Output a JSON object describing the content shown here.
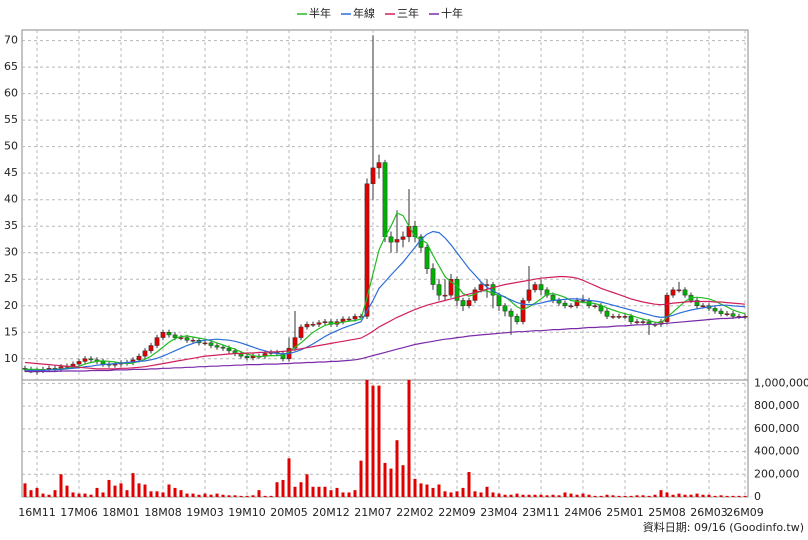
{
  "chart_data": [
    {
      "type": "candlestick",
      "legend": "top",
      "grid": true,
      "color_up": "#e00000",
      "color_down": "#00b000",
      "ylim": [
        6,
        72
      ],
      "yticks": [
        10,
        15,
        20,
        25,
        30,
        35,
        40,
        45,
        50,
        55,
        60,
        65,
        70
      ],
      "open": [
        8.2,
        8,
        7.5,
        7.8,
        8,
        8.2,
        8,
        8.5,
        8.6,
        9,
        9.5,
        10,
        9.8,
        9.5,
        9,
        8.8,
        9,
        9.2,
        9.3,
        9.8,
        10.5,
        11.5,
        12.5,
        14,
        15,
        14.5,
        14,
        14,
        13.5,
        13.5,
        13,
        13,
        12.5,
        12.2,
        12,
        11.5,
        11,
        10.5,
        10.2,
        10.5,
        10.5,
        11,
        11.2,
        11,
        10,
        12,
        14,
        16,
        16.5,
        16.5,
        16.8,
        17,
        16.5,
        17,
        17.5,
        17.5,
        18,
        18,
        43,
        46,
        47,
        33,
        32,
        32.5,
        33,
        35,
        33,
        31,
        27,
        24,
        22,
        22,
        25,
        21,
        20,
        21,
        23,
        24,
        24,
        22,
        20,
        19,
        18,
        17,
        21,
        23,
        24,
        23,
        22,
        21,
        20.5,
        20,
        20,
        21,
        21,
        20,
        20,
        19,
        18,
        18,
        18,
        18,
        17,
        17,
        17,
        16.5,
        16.5,
        17,
        22,
        23,
        23,
        22,
        21,
        20,
        20,
        19.5,
        19,
        18.5,
        18.5,
        18,
        18
      ],
      "high": [
        8.7,
        8.5,
        8.3,
        8.5,
        8.7,
        8.7,
        9,
        9.1,
        9.5,
        10,
        10.5,
        10.5,
        10.3,
        10,
        9.5,
        9.5,
        9.7,
        9.8,
        10.3,
        11,
        12,
        13,
        14.5,
        15.5,
        15.5,
        15,
        14.5,
        14.5,
        14,
        14,
        13.5,
        13.5,
        13,
        12.7,
        12.5,
        12,
        11.5,
        11,
        11,
        11,
        11.5,
        11.7,
        11.7,
        11.5,
        14,
        19,
        16.5,
        17,
        17,
        17.3,
        17.5,
        17.5,
        17.5,
        18,
        18,
        18.5,
        18.5,
        44,
        71,
        48.5,
        47.5,
        34,
        38,
        34,
        42,
        36,
        33.5,
        31.5,
        28,
        25,
        25,
        26,
        25.5,
        21.5,
        21.5,
        23.5,
        24.5,
        25,
        24.5,
        22.5,
        20.5,
        19.5,
        18.5,
        21.5,
        27.5,
        24.5,
        25,
        23.5,
        22.5,
        21.5,
        21,
        20.5,
        21.5,
        22,
        21.5,
        20.5,
        20.5,
        19.5,
        18.5,
        18.5,
        18.5,
        18.5,
        17.5,
        17.5,
        17.5,
        17,
        17.5,
        22.5,
        23.5,
        24.5,
        23.5,
        22.5,
        21.5,
        20.5,
        20.5,
        20,
        19.5,
        19,
        19,
        18.5,
        18.5
      ],
      "low": [
        7.5,
        7.3,
        7,
        7.3,
        7.5,
        7.5,
        7.5,
        8,
        8.1,
        8.5,
        9,
        9.3,
        9,
        8.5,
        8.3,
        8.3,
        8.5,
        8.7,
        8.8,
        9.3,
        10,
        11,
        12,
        13.5,
        14,
        13.5,
        13.5,
        13,
        13,
        12.5,
        12.5,
        12,
        11.7,
        11.5,
        11,
        10.5,
        10,
        9.7,
        9.7,
        10,
        10,
        10.5,
        10.5,
        9.5,
        9.5,
        11.5,
        13.5,
        15.5,
        16,
        16,
        16.3,
        16,
        16,
        16.5,
        17,
        17,
        17.5,
        17.5,
        40,
        44,
        32,
        30,
        30,
        31,
        32,
        32,
        30,
        26,
        23,
        21,
        21,
        21.5,
        20,
        19,
        19.5,
        20.5,
        22.5,
        21.5,
        19.5,
        19,
        18,
        14.5,
        16.5,
        16.5,
        20.5,
        22.5,
        22,
        21.5,
        20.5,
        20,
        19.5,
        19.5,
        19.5,
        20.5,
        19.5,
        19.5,
        18.5,
        17.5,
        17.5,
        17.5,
        17.5,
        16.5,
        16.5,
        16.5,
        14.5,
        16,
        16,
        16.5,
        21.5,
        22.5,
        21.5,
        20.5,
        19.5,
        19.5,
        19,
        18.5,
        18,
        18,
        17.5,
        17.5,
        17.5
      ],
      "close": [
        8,
        7.5,
        7.8,
        8,
        8.2,
        8,
        8.5,
        8.6,
        9,
        9.5,
        10,
        9.8,
        9.5,
        9,
        8.8,
        9,
        9.2,
        9.3,
        9.8,
        10.5,
        11.5,
        12.5,
        14,
        15,
        14.5,
        14,
        14,
        13.5,
        13.5,
        13,
        13,
        12.5,
        12.2,
        12,
        11.5,
        11,
        10.5,
        10.2,
        10.5,
        10.5,
        11,
        11.2,
        11,
        10,
        12,
        14,
        16,
        16.5,
        16.5,
        16.8,
        17,
        16.5,
        17,
        17.5,
        17.5,
        18,
        18,
        43,
        46,
        47,
        33,
        32,
        32.5,
        33,
        35,
        33,
        31,
        27,
        24,
        22,
        22,
        25,
        21,
        20,
        21,
        23,
        24,
        24,
        22,
        20,
        19,
        18,
        17,
        21,
        23,
        24,
        23,
        22,
        21,
        20.5,
        20,
        20,
        21,
        21,
        20,
        20,
        19,
        18,
        18,
        18,
        18,
        17,
        17,
        17,
        16.5,
        16.5,
        17,
        22,
        23,
        23,
        22,
        21,
        20,
        20,
        19.5,
        19,
        18.5,
        18.5,
        18,
        18,
        18
      ],
      "series": [
        {
          "name": "半年",
          "color": "#22bb22",
          "values": [
            8,
            8,
            8,
            7.9,
            7.9,
            7.9,
            8.1,
            8.2,
            8.4,
            8.6,
            9,
            9.3,
            9.5,
            9.6,
            9.5,
            9.4,
            9.2,
            9.1,
            9.2,
            9.5,
            9.9,
            10.5,
            11.3,
            12.2,
            13.1,
            13.8,
            14.2,
            14.3,
            14.1,
            13.9,
            13.7,
            13.4,
            13,
            12.6,
            12.2,
            11.8,
            11.3,
            10.9,
            10.6,
            10.4,
            10.5,
            10.6,
            10.6,
            10.7,
            11.3,
            12.2,
            13,
            14,
            15,
            15.7,
            16.3,
            16.6,
            16.7,
            16.9,
            17.1,
            17.2,
            17.5,
            21.5,
            26,
            30.5,
            33,
            35,
            37.5,
            37,
            35,
            33,
            32.5,
            31.8,
            29.5,
            27.5,
            25.5,
            24.5,
            23.8,
            22.3,
            21.8,
            22.2,
            22.8,
            22.8,
            22.3,
            22,
            21.7,
            20.8,
            19.8,
            19.3,
            19.8,
            20.5,
            21.3,
            22.2,
            22.3,
            22,
            21.6,
            21,
            20.8,
            20.6,
            20.6,
            20.4,
            20.1,
            19.6,
            19.2,
            18.8,
            18.5,
            18.2,
            17.8,
            17.5,
            17.2,
            16.9,
            16.8,
            17.8,
            18.8,
            19.8,
            20.8,
            21.5,
            21.6,
            21.5,
            21.3,
            20.9,
            20.3,
            19.8,
            19.2,
            18.8,
            18.5
          ]
        },
        {
          "name": "年線",
          "color": "#2b6cd8",
          "values": [
            7.8,
            7.8,
            7.8,
            7.8,
            7.9,
            7.9,
            8,
            8.1,
            8.2,
            8.3,
            8.5,
            8.6,
            8.8,
            8.9,
            9,
            9.1,
            9.2,
            9.3,
            9.4,
            9.5,
            9.6,
            9.8,
            10.1,
            10.5,
            11,
            11.5,
            12,
            12.5,
            12.9,
            13.3,
            13.5,
            13.6,
            13.7,
            13.6,
            13.5,
            13.3,
            13,
            12.6,
            12.2,
            11.8,
            11.5,
            11.2,
            11,
            10.9,
            11,
            11.3,
            11.7,
            12.2,
            12.8,
            13.5,
            14.2,
            14.8,
            15.3,
            15.8,
            16.2,
            16.6,
            17,
            19,
            21,
            23.3,
            24.5,
            25.8,
            27,
            28.2,
            29.6,
            31,
            32.5,
            33.5,
            34,
            33.8,
            32.8,
            31.5,
            30,
            28.5,
            27,
            25.8,
            24.5,
            23.5,
            22.8,
            22.2,
            21.6,
            21.1,
            20.6,
            20.3,
            20.2,
            20.3,
            20.5,
            20.8,
            21,
            21.1,
            21.2,
            21.3,
            21.3,
            21.2,
            21,
            20.9,
            20.7,
            20.4,
            20.1,
            19.8,
            19.5,
            19.2,
            18.9,
            18.6,
            18.3,
            18,
            17.8,
            17.9,
            18.2,
            18.6,
            18.9,
            19.2,
            19.4,
            19.6,
            19.8,
            20,
            20.1,
            20.1,
            20,
            19.9,
            19.8
          ]
        },
        {
          "name": "三年",
          "color": "#d0205a",
          "values": [
            9.3,
            9.2,
            9.1,
            9,
            8.9,
            8.8,
            8.7,
            8.6,
            8.5,
            8.4,
            8.3,
            8.2,
            8.1,
            8.1,
            8.1,
            8.1,
            8.2,
            8.2,
            8.3,
            8.4,
            8.5,
            8.7,
            8.9,
            9.1,
            9.3,
            9.5,
            9.7,
            9.9,
            10.1,
            10.3,
            10.5,
            10.6,
            10.7,
            10.8,
            10.9,
            11,
            11,
            11.1,
            11.1,
            11.2,
            11.2,
            11.3,
            11.3,
            11.4,
            11.5,
            11.7,
            11.9,
            12.1,
            12.3,
            12.5,
            12.7,
            12.9,
            13.1,
            13.3,
            13.5,
            13.7,
            13.9,
            14.5,
            15.2,
            16,
            16.6,
            17.2,
            17.8,
            18.3,
            18.8,
            19.3,
            19.7,
            20.1,
            20.4,
            20.7,
            21,
            21.3,
            21.6,
            21.9,
            22.2,
            22.5,
            22.8,
            23.1,
            23.4,
            23.7,
            24,
            24.2,
            24.4,
            24.6,
            24.8,
            25,
            25.2,
            25.3,
            25.4,
            25.5,
            25.5,
            25.4,
            25.2,
            24.8,
            24.3,
            23.8,
            23.3,
            22.9,
            22.5,
            22.1,
            21.7,
            21.3,
            21,
            20.7,
            20.5,
            20.3,
            20.2,
            20.3,
            20.5,
            20.6,
            20.7,
            20.8,
            20.8,
            20.8,
            20.8,
            20.7,
            20.7,
            20.6,
            20.5,
            20.4,
            20.3
          ]
        },
        {
          "name": "十年",
          "color": "#7a2aa8",
          "values": [
            7.6,
            7.6,
            7.6,
            7.6,
            7.6,
            7.6,
            7.7,
            7.7,
            7.7,
            7.7,
            7.7,
            7.8,
            7.8,
            7.8,
            7.8,
            7.9,
            7.9,
            7.9,
            8,
            8,
            8,
            8.1,
            8.1,
            8.2,
            8.2,
            8.3,
            8.3,
            8.4,
            8.4,
            8.5,
            8.5,
            8.6,
            8.6,
            8.7,
            8.7,
            8.8,
            8.8,
            8.9,
            8.9,
            8.9,
            9,
            9,
            9,
            9.1,
            9.1,
            9.2,
            9.2,
            9.3,
            9.3,
            9.4,
            9.4,
            9.5,
            9.5,
            9.6,
            9.7,
            9.8,
            10,
            10.3,
            10.6,
            10.9,
            11.2,
            11.5,
            11.8,
            12.1,
            12.4,
            12.7,
            12.9,
            13.1,
            13.3,
            13.5,
            13.7,
            13.8,
            14,
            14.1,
            14.3,
            14.4,
            14.5,
            14.6,
            14.7,
            14.8,
            14.9,
            15,
            15.1,
            15.1,
            15.2,
            15.3,
            15.3,
            15.4,
            15.5,
            15.5,
            15.6,
            15.7,
            15.7,
            15.8,
            15.9,
            15.9,
            16,
            16,
            16.1,
            16.2,
            16.2,
            16.3,
            16.4,
            16.4,
            16.5,
            16.5,
            16.6,
            16.7,
            16.8,
            16.9,
            17,
            17.1,
            17.2,
            17.3,
            17.4,
            17.5,
            17.6,
            17.6,
            17.7,
            17.8,
            17.8
          ]
        }
      ]
    },
    {
      "type": "bar",
      "grid": true,
      "color": "#e00000",
      "categories": [
        null,
        null,
        "16M11",
        null,
        null,
        null,
        null,
        null,
        null,
        "17M06",
        null,
        null,
        null,
        null,
        null,
        null,
        "18M01",
        null,
        null,
        null,
        null,
        null,
        null,
        "18M08",
        null,
        null,
        null,
        null,
        null,
        null,
        "19M03",
        null,
        null,
        null,
        null,
        null,
        null,
        "19M10",
        null,
        null,
        null,
        null,
        null,
        null,
        "20M05",
        null,
        null,
        null,
        null,
        null,
        null,
        "20M12",
        null,
        null,
        null,
        null,
        null,
        null,
        "21M07",
        null,
        null,
        null,
        null,
        null,
        null,
        "22M02",
        null,
        null,
        null,
        null,
        null,
        null,
        "22M09",
        null,
        null,
        null,
        null,
        null,
        null,
        "23M04",
        null,
        null,
        null,
        null,
        null,
        null,
        "23M11",
        null,
        null,
        null,
        null,
        null,
        null,
        "24M06",
        null,
        null,
        null,
        null,
        null,
        null,
        "25M01",
        null,
        null,
        null,
        null,
        null,
        null,
        "25M08",
        null,
        null,
        null,
        null,
        null,
        null,
        "26M03",
        null,
        null,
        null,
        null,
        null,
        "26M09"
      ],
      "values": [
        120000,
        60000,
        80000,
        30000,
        20000,
        60000,
        200000,
        100000,
        40000,
        30000,
        30000,
        20000,
        80000,
        40000,
        150000,
        100000,
        120000,
        60000,
        210000,
        120000,
        110000,
        50000,
        50000,
        40000,
        110000,
        80000,
        60000,
        30000,
        30000,
        20000,
        30000,
        20000,
        30000,
        20000,
        15000,
        15000,
        10000,
        10000,
        15000,
        60000,
        10000,
        10000,
        130000,
        150000,
        340000,
        90000,
        130000,
        200000,
        90000,
        90000,
        90000,
        60000,
        80000,
        40000,
        40000,
        60000,
        320000,
        1030000,
        980000,
        980000,
        300000,
        250000,
        500000,
        280000,
        1030000,
        160000,
        120000,
        110000,
        80000,
        110000,
        50000,
        40000,
        50000,
        80000,
        220000,
        50000,
        40000,
        90000,
        40000,
        30000,
        20000,
        20000,
        30000,
        20000,
        20000,
        20000,
        20000,
        15000,
        20000,
        15000,
        40000,
        30000,
        20000,
        30000,
        20000,
        10000,
        10000,
        20000,
        15000,
        10000,
        10000,
        10000,
        15000,
        15000,
        10000,
        20000,
        60000,
        40000,
        20000,
        30000,
        20000,
        20000,
        30000,
        20000,
        20000,
        10000,
        15000,
        10000,
        10000,
        10000,
        10000
      ],
      "ylim": [
        0,
        1030000
      ],
      "yticks": [
        0,
        {
          "value": 200000,
          "label": "200,000"
        },
        {
          "value": 400000,
          "label": "400,000"
        },
        {
          "value": 600000,
          "label": "600,000"
        },
        {
          "value": 800000,
          "label": "800,000"
        },
        {
          "value": 1000000,
          "label": "1,000,000"
        }
      ]
    }
  ],
  "footer": "資料日期: 09/16 (Goodinfo.tw)"
}
